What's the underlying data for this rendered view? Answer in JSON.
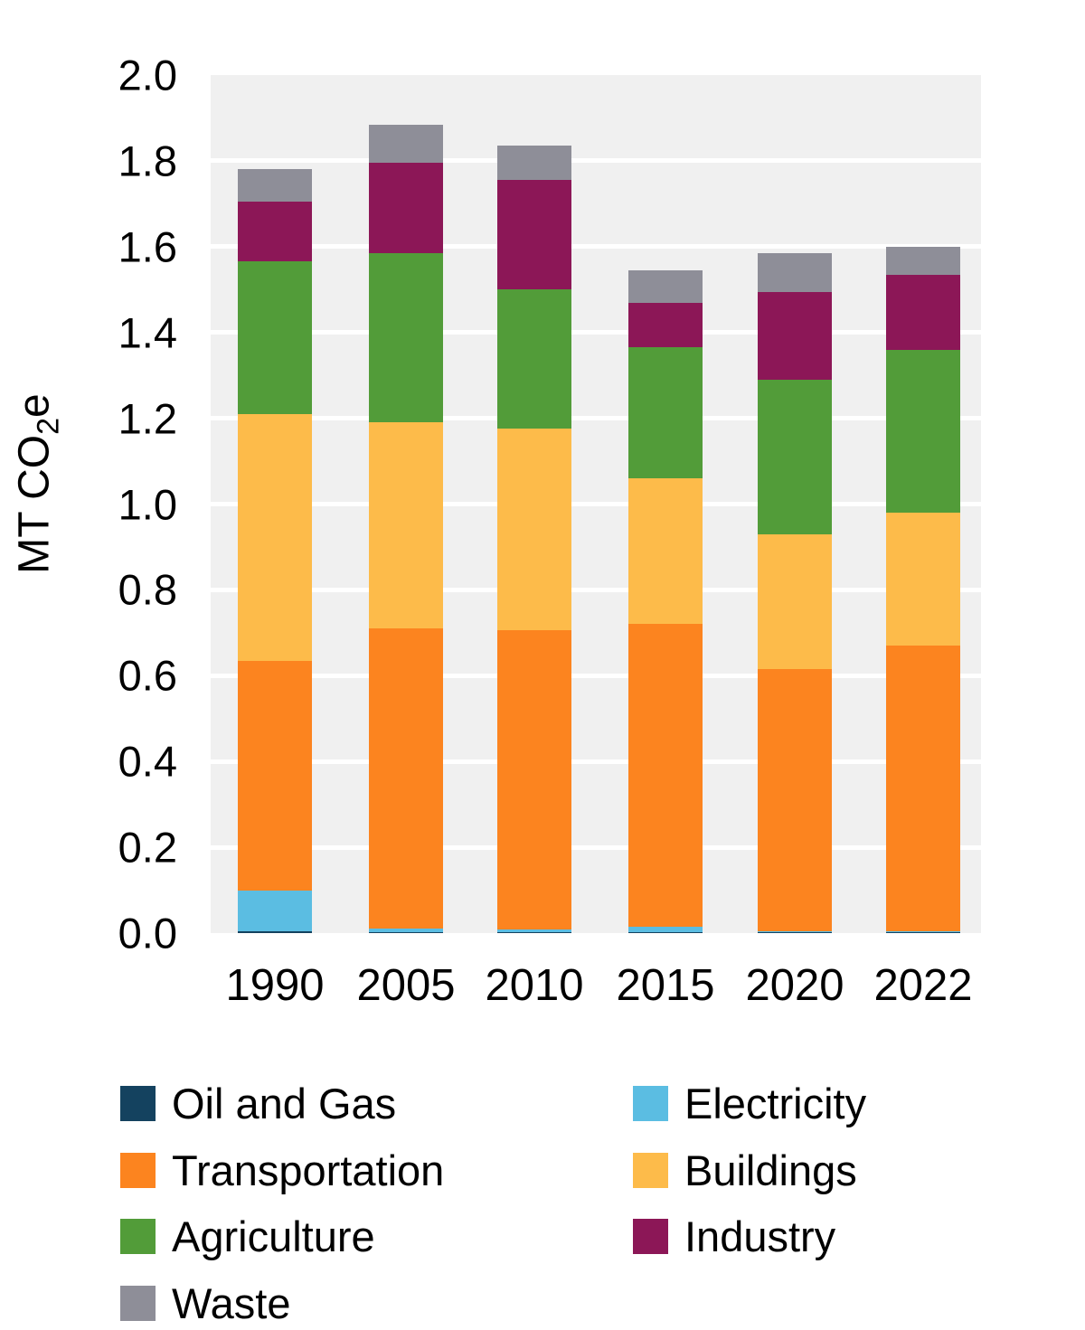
{
  "chart_data": {
    "type": "bar",
    "stacked": true,
    "title": "",
    "xlabel": "",
    "ylabel": {
      "prefix": "MT CO",
      "sub": "2",
      "suffix": "e"
    },
    "ylim": [
      0,
      2.0
    ],
    "ytick_step": 0.2,
    "ytick_labels": [
      "0.0",
      "0.2",
      "0.4",
      "0.6",
      "0.8",
      "1.0",
      "1.2",
      "1.4",
      "1.6",
      "1.8",
      "2.0"
    ],
    "grid": true,
    "legend_position": "bottom",
    "categories": [
      "1990",
      "2005",
      "2010",
      "2015",
      "2020",
      "2022"
    ],
    "series": [
      {
        "name": "Oil and Gas",
        "color": "#14425F",
        "values": [
          0.005,
          0.003,
          0.003,
          0.003,
          0.002,
          0.002
        ]
      },
      {
        "name": "Electricity",
        "color": "#5BBDE2",
        "values": [
          0.095,
          0.007,
          0.006,
          0.012,
          0.002,
          0.002
        ]
      },
      {
        "name": "Transportation",
        "color": "#FC841F",
        "values": [
          0.535,
          0.7,
          0.696,
          0.705,
          0.611,
          0.666
        ]
      },
      {
        "name": "Buildings",
        "color": "#FDBB4A",
        "values": [
          0.575,
          0.48,
          0.47,
          0.34,
          0.315,
          0.31
        ]
      },
      {
        "name": "Agriculture",
        "color": "#529C39",
        "values": [
          0.355,
          0.395,
          0.325,
          0.305,
          0.36,
          0.38
        ]
      },
      {
        "name": "Industry",
        "color": "#8C1757",
        "values": [
          0.14,
          0.21,
          0.255,
          0.105,
          0.205,
          0.175
        ]
      },
      {
        "name": "Waste",
        "color": "#8E8E98",
        "values": [
          0.075,
          0.09,
          0.08,
          0.075,
          0.09,
          0.065
        ]
      }
    ],
    "totals": [
      1.78,
      1.885,
      1.835,
      1.545,
      1.585,
      1.6
    ],
    "legend_order": [
      "Oil and Gas",
      "Electricity",
      "Transportation",
      "Buildings",
      "Agriculture",
      "Industry",
      "Waste"
    ]
  },
  "colors": {
    "plot_background": "#F0F0F0",
    "gridline": "#FFFFFF",
    "text": "#000000"
  }
}
